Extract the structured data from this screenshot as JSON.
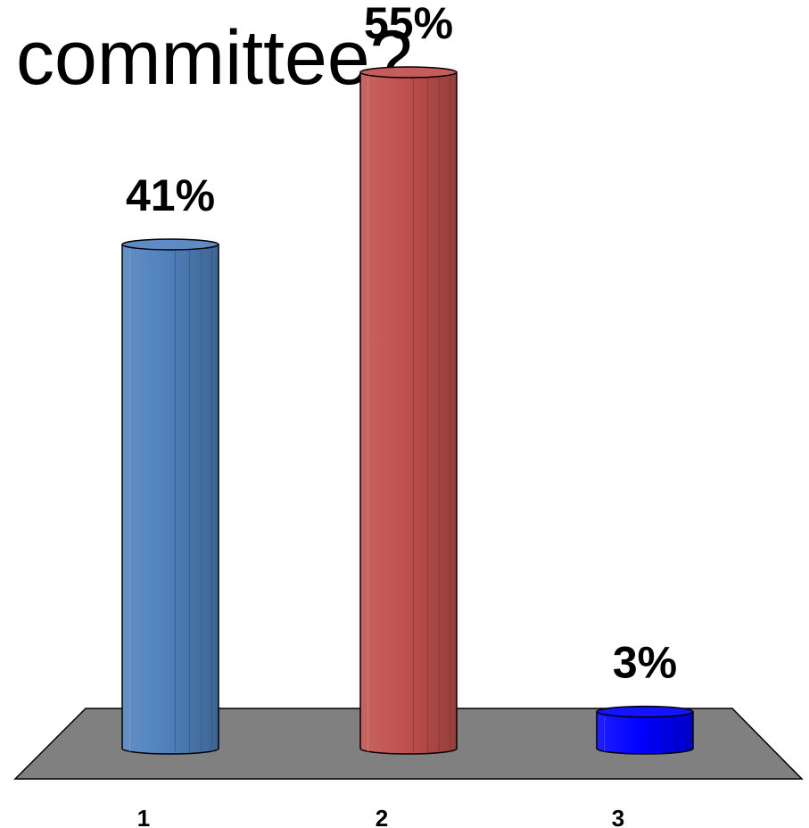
{
  "title": "committee?",
  "chart_data": {
    "type": "bar",
    "style": "3d-cylinder",
    "categories": [
      "1",
      "2",
      "3"
    ],
    "values": [
      41,
      55,
      3
    ],
    "data_labels": [
      "41%",
      "55%",
      "3%"
    ],
    "value_unit": "%",
    "ylim": [
      0,
      55
    ],
    "grid": false,
    "legend": "none",
    "colors": [
      "#4f81bd",
      "#c0504d",
      "#0000ff"
    ],
    "floor_color": "#808080"
  }
}
